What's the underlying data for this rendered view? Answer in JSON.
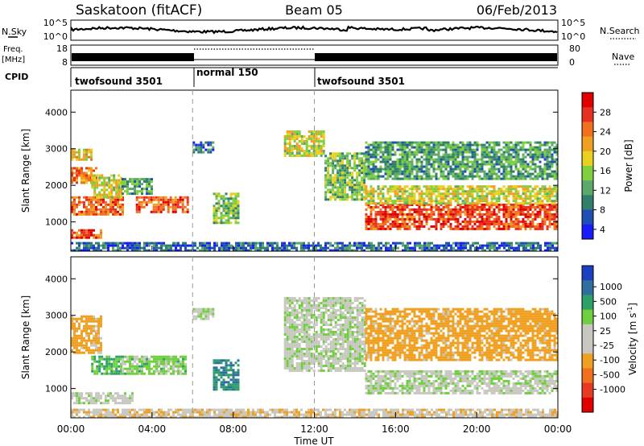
{
  "header": {
    "station": "Saskatoon (fitACF)",
    "beam": "Beam 05",
    "date": "06/Feb/2013"
  },
  "status_panels": {
    "nsky_label": "N.Sky",
    "nsky_ticks": [
      "10^5",
      "10^0"
    ],
    "nsearch_label": "N.Search",
    "nsearch_ticks": [
      "10^5",
      "10^0"
    ],
    "freq_label_line1": "Freq.",
    "freq_label_line2": "[MHz]",
    "freq_ticks": [
      "18",
      "8"
    ],
    "nave_label": "Nave",
    "nave_ticks": [
      "80",
      "0"
    ],
    "cpid_label": "CPID",
    "cpid_segments": [
      {
        "label": "twofsound 3501",
        "start_h": 0,
        "end_h": 6
      },
      {
        "label": "normal 150",
        "start_h": 6,
        "end_h": 12
      },
      {
        "label": "twofsound 3501",
        "start_h": 12,
        "end_h": 24
      }
    ]
  },
  "axes": {
    "xlabel": "Time UT",
    "xticks": [
      "00:00",
      "04:00",
      "08:00",
      "12:00",
      "16:00",
      "20:00",
      "00:00"
    ],
    "ylabel": "Slant Range [km]",
    "yticks": [
      "1000",
      "2000",
      "3000",
      "4000"
    ]
  },
  "power_scale": {
    "label": "Power [dB]",
    "ticks": [
      "4",
      "8",
      "12",
      "16",
      "20",
      "24",
      "28"
    ],
    "colors": [
      "#1a1aff",
      "#1f4fb4",
      "#2f7f6a",
      "#5aa86a",
      "#7fcf3f",
      "#e8d020",
      "#f0a020",
      "#f07020",
      "#e83020",
      "#e00000"
    ]
  },
  "velocity_scale": {
    "label": "Velocity [m s",
    "label_sup": "-1",
    "label_end": "]",
    "ticks": [
      "1000",
      "500",
      "100",
      "25",
      "-25",
      "-100",
      "-500",
      "-1000"
    ],
    "colors": [
      "#1a3fbf",
      "#2f6fa0",
      "#2f9f6a",
      "#6fcf3f",
      "#c8c8c0",
      "#c8c8c0",
      "#f0a020",
      "#f07020",
      "#e83a20",
      "#e00000"
    ]
  },
  "chart_data": [
    {
      "type": "heatmap",
      "title": "",
      "xlabel": "Time UT",
      "ylabel": "Slant Range [km]",
      "xlim": [
        0,
        24
      ],
      "ylim": [
        200,
        4600
      ],
      "colorbar": "Power [dB]",
      "regions": [
        {
          "t": [
            0.0,
            1.5
          ],
          "range": [
            600,
            800
          ],
          "value": 26
        },
        {
          "t": [
            0.0,
            2.5
          ],
          "range": [
            1200,
            1700
          ],
          "value": 25
        },
        {
          "t": [
            0.0,
            1.2
          ],
          "range": [
            2100,
            2500
          ],
          "value": 24
        },
        {
          "t": [
            0.0,
            1.0
          ],
          "range": [
            2700,
            3000
          ],
          "value": 20
        },
        {
          "t": [
            1.0,
            2.5
          ],
          "range": [
            1700,
            2300
          ],
          "value": 18
        },
        {
          "t": [
            2.5,
            4.0
          ],
          "range": [
            1800,
            2200
          ],
          "value": 12
        },
        {
          "t": [
            3.2,
            5.7
          ],
          "range": [
            1300,
            1700
          ],
          "value": 26
        },
        {
          "t": [
            6.0,
            7.0
          ],
          "range": [
            2900,
            3200
          ],
          "value": 8
        },
        {
          "t": [
            7.0,
            8.3
          ],
          "range": [
            1000,
            1800
          ],
          "value": 14
        },
        {
          "t": [
            10.5,
            12.5
          ],
          "range": [
            2800,
            3500
          ],
          "value": 18
        },
        {
          "t": [
            12.5,
            14.5
          ],
          "range": [
            1600,
            2900
          ],
          "value": 14
        },
        {
          "t": [
            14.5,
            24.0
          ],
          "range": [
            800,
            1500
          ],
          "value": 27
        },
        {
          "t": [
            14.5,
            24.0
          ],
          "range": [
            1500,
            2000
          ],
          "value": 18
        },
        {
          "t": [
            14.5,
            24.0
          ],
          "range": [
            2200,
            3200
          ],
          "value": 12
        },
        {
          "t": [
            0.0,
            24.0
          ],
          "range": [
            200,
            450
          ],
          "value": 8
        }
      ]
    },
    {
      "type": "heatmap",
      "title": "",
      "xlabel": "Time UT",
      "ylabel": "Slant Range [km]",
      "xlim": [
        0,
        24
      ],
      "ylim": [
        200,
        4600
      ],
      "colorbar": "Velocity [m s-1]",
      "regions": [
        {
          "t": [
            0.0,
            3.0
          ],
          "range": [
            600,
            900
          ],
          "value": 0
        },
        {
          "t": [
            0.0,
            1.5
          ],
          "range": [
            2000,
            3000
          ],
          "value": -150
        },
        {
          "t": [
            1.0,
            2.5
          ],
          "range": [
            1400,
            1900
          ],
          "value": 100
        },
        {
          "t": [
            2.5,
            5.7
          ],
          "range": [
            1400,
            1900
          ],
          "value": 50
        },
        {
          "t": [
            6.0,
            7.0
          ],
          "range": [
            2900,
            3200
          ],
          "value": 0
        },
        {
          "t": [
            7.0,
            8.3
          ],
          "range": [
            1000,
            1800
          ],
          "value": 500
        },
        {
          "t": [
            10.5,
            14.5
          ],
          "range": [
            1500,
            3500
          ],
          "value": 0
        },
        {
          "t": [
            14.5,
            24.0
          ],
          "range": [
            900,
            1500
          ],
          "value": 0
        },
        {
          "t": [
            14.5,
            24.0
          ],
          "range": [
            1800,
            3200
          ],
          "value": -150
        },
        {
          "t": [
            0.0,
            24.0
          ],
          "range": [
            200,
            450
          ],
          "value": -80
        }
      ]
    }
  ]
}
